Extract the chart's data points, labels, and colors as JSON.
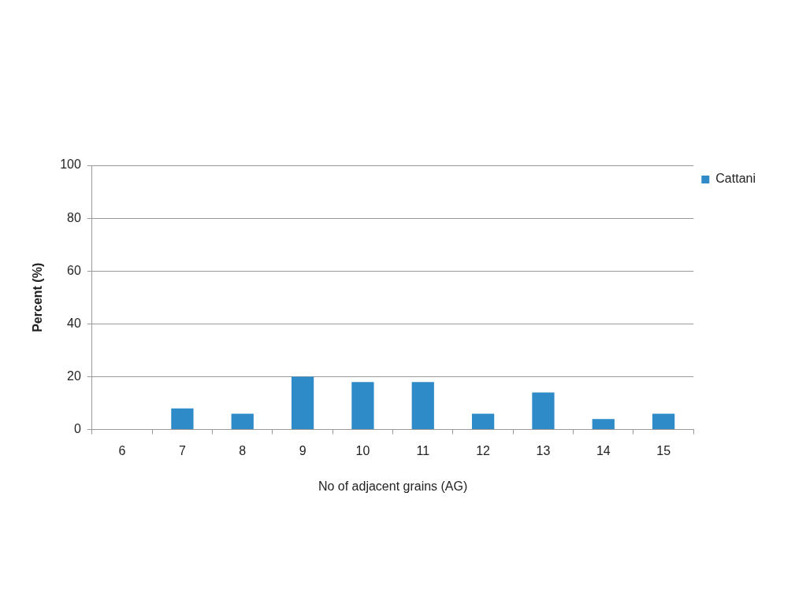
{
  "chart_data": {
    "type": "bar",
    "xlabel": "No of adjacent grains (AG)",
    "ylabel": "Percent (%)",
    "categories": [
      "6",
      "7",
      "8",
      "9",
      "10",
      "11",
      "12",
      "13",
      "14",
      "15"
    ],
    "series": [
      {
        "name": "Cattani",
        "color": "#2e8bc7",
        "values": [
          0,
          8,
          6,
          20,
          18,
          18,
          6,
          14,
          4,
          6
        ]
      }
    ],
    "ylim": [
      0,
      100
    ],
    "yticks": [
      0,
      20,
      40,
      60,
      80,
      100
    ],
    "grid": "y",
    "legend": "right"
  }
}
